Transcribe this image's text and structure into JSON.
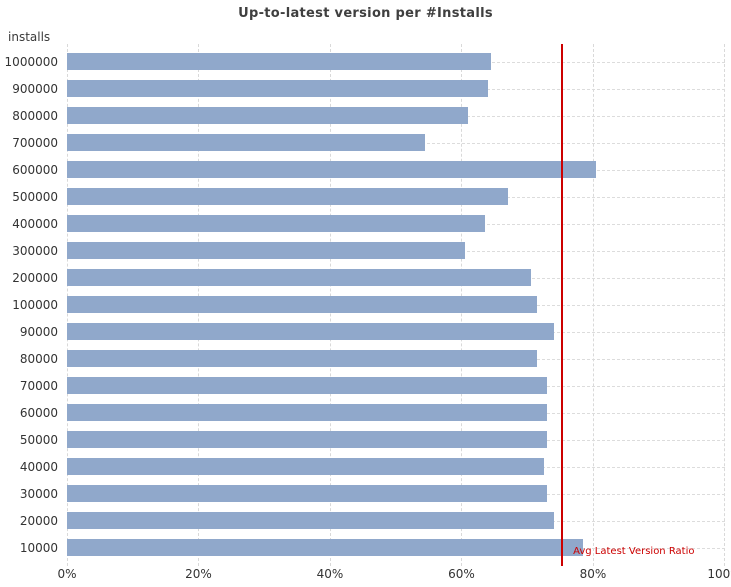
{
  "page": {
    "background_color": "#ffffff"
  },
  "chart_data": {
    "type": "bar",
    "orientation": "horizontal",
    "title": "Up-to-latest version per #Installs",
    "y_axis_label": "installs",
    "xlabel": "",
    "unit": "%",
    "xlim": [
      0,
      100
    ],
    "x_tick_values": [
      0,
      20,
      40,
      60,
      80,
      100
    ],
    "x_tick_labels": [
      "0%",
      "20%",
      "40%",
      "60%",
      "80%",
      "100%"
    ],
    "categories": [
      "1000000",
      "900000",
      "800000",
      "700000",
      "600000",
      "500000",
      "400000",
      "300000",
      "200000",
      "100000",
      "90000",
      "80000",
      "70000",
      "60000",
      "50000",
      "40000",
      "30000",
      "20000",
      "10000"
    ],
    "values": [
      64.5,
      64,
      61,
      54.5,
      80.5,
      67,
      63.5,
      60.5,
      70.5,
      71.5,
      74,
      71.5,
      73,
      73,
      73,
      72.5,
      73,
      74,
      78.5
    ],
    "reference_line": {
      "value": 75.3,
      "label": "Avg Latest Version Ratio",
      "color": "#cc0000"
    },
    "bar_color": "#90a8cb",
    "gridline_color": "#d9d9d9",
    "grid": "both",
    "legend": "none"
  }
}
